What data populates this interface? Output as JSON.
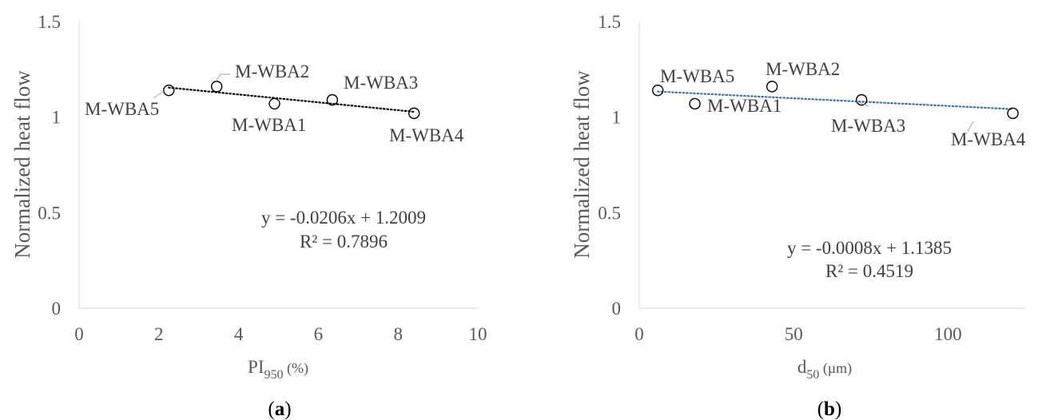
{
  "chart_data": [
    {
      "type": "scatter",
      "panel_label": "(a)",
      "xlabel_main": "PI",
      "xlabel_sub": "950",
      "xlabel_tail": " (%)",
      "ylabel": "Normalized heat flow",
      "xlim": [
        0,
        10
      ],
      "ylim": [
        0,
        1.5
      ],
      "x_ticks": [
        "0",
        "2",
        "4",
        "6",
        "8",
        "10"
      ],
      "y_ticks": [
        "0",
        "0.5",
        "1",
        "1.5"
      ],
      "grid": false,
      "points": [
        {
          "label": "M-WBA5",
          "x": 2.25,
          "y": 1.14
        },
        {
          "label": "M-WBA2",
          "x": 3.45,
          "y": 1.16
        },
        {
          "label": "M-WBA1",
          "x": 4.9,
          "y": 1.07
        },
        {
          "label": "M-WBA3",
          "x": 6.35,
          "y": 1.09
        },
        {
          "label": "M-WBA4",
          "x": 8.4,
          "y": 1.02
        }
      ],
      "trendline": {
        "slope": -0.0206,
        "intercept": 1.2009,
        "x_range": [
          2.25,
          8.4
        ],
        "color": "#000000",
        "style": "dotted"
      },
      "equation": "y = -0.0206x + 1.2009",
      "r_squared": "R² = 0.7896"
    },
    {
      "type": "scatter",
      "panel_label": "(b)",
      "xlabel_main": "d",
      "xlabel_sub": "50",
      "xlabel_tail": " (µm)",
      "ylabel": "Normalized heat flow",
      "xlim": [
        0,
        125
      ],
      "ylim": [
        0,
        1.5
      ],
      "x_ticks": [
        "0",
        "50",
        "100"
      ],
      "x_tick_values": [
        0,
        50,
        100
      ],
      "y_ticks": [
        "0",
        "0.5",
        "1",
        "1.5"
      ],
      "grid": false,
      "points": [
        {
          "label": "M-WBA5",
          "x": 6,
          "y": 1.14
        },
        {
          "label": "M-WBA1",
          "x": 18,
          "y": 1.07
        },
        {
          "label": "M-WBA2",
          "x": 43,
          "y": 1.16
        },
        {
          "label": "M-WBA3",
          "x": 72,
          "y": 1.09
        },
        {
          "label": "M-WBA4",
          "x": 121,
          "y": 1.02
        }
      ],
      "trendline": {
        "slope": -0.0008,
        "intercept": 1.1385,
        "x_range": [
          6,
          121
        ],
        "color": "#2e75b6",
        "style": "dotted"
      },
      "equation": "y = -0.0008x + 1.1385",
      "r_squared": "R² = 0.4519"
    }
  ]
}
